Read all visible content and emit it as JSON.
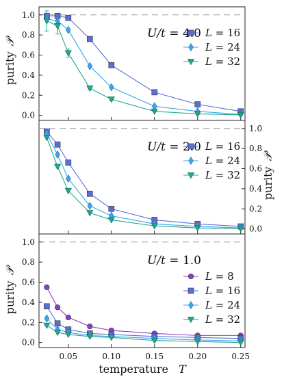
{
  "figure": {
    "xlabel_text": "temperature",
    "xlabel_var": "T",
    "ylabel_text": "purity",
    "ylabel_var": "𝒫"
  },
  "colors": {
    "L8": "#8b3fc0",
    "L16": "#5a6ed8",
    "L24": "#3aa6ec",
    "L32": "#23a48e",
    "dashed": "#9a9a9a"
  },
  "chart_data": [
    {
      "type": "line",
      "panel": "top",
      "annotation_lhs": "U/t",
      "annotation_rhs": "= 4.0",
      "xlim": [
        0.016,
        0.255
      ],
      "ylim": [
        -0.05,
        1.08
      ],
      "y_ticks": [
        0.0,
        0.2,
        0.4,
        0.6,
        0.8,
        1.0
      ],
      "y_tick_labels": [
        "0.0",
        "0.2",
        "0.4",
        "0.6",
        "0.8",
        "1.0"
      ],
      "y_axis_side": "left",
      "show_x_ticks": false,
      "grid": false,
      "legend": "right",
      "reference_line_y": 1.0,
      "series": [
        {
          "name": "L = 16",
          "key": "L16",
          "marker": "square",
          "x": [
            0.025,
            0.0375,
            0.05,
            0.075,
            0.1,
            0.15,
            0.2,
            0.25
          ],
          "y": [
            0.99,
            0.99,
            0.97,
            0.76,
            0.5,
            0.23,
            0.11,
            0.04
          ]
        },
        {
          "name": "L = 24",
          "key": "L24",
          "marker": "diamond",
          "x": [
            0.025,
            0.0375,
            0.05,
            0.075,
            0.1,
            0.15,
            0.2,
            0.25
          ],
          "y": [
            0.96,
            0.94,
            0.85,
            0.49,
            0.28,
            0.09,
            0.04,
            0.01
          ]
        },
        {
          "name": "L = 32",
          "key": "L32",
          "marker": "triangle-down",
          "x": [
            0.025,
            0.0375,
            0.05,
            0.075,
            0.1,
            0.15,
            0.2,
            0.25
          ],
          "y": [
            0.94,
            0.89,
            0.62,
            0.27,
            0.16,
            0.04,
            0.015,
            0.005
          ],
          "err": [
            0.1,
            0.08,
            0.04,
            0.015,
            0.01,
            0.005,
            0.005,
            0.005
          ]
        }
      ]
    },
    {
      "type": "line",
      "panel": "middle",
      "annotation_lhs": "U/t",
      "annotation_rhs": "= 2.0",
      "xlim": [
        0.016,
        0.255
      ],
      "ylim": [
        -0.05,
        1.08
      ],
      "y_ticks": [
        0.0,
        0.2,
        0.4,
        0.6,
        0.8,
        1.0
      ],
      "y_tick_labels": [
        "0.0",
        "0.2",
        "0.4",
        "0.6",
        "0.8",
        "1.0"
      ],
      "y_axis_side": "right",
      "show_x_ticks": false,
      "grid": false,
      "legend": "right",
      "reference_line_y": 1.0,
      "series": [
        {
          "name": "L = 16",
          "key": "L16",
          "marker": "square",
          "x": [
            0.025,
            0.0375,
            0.05,
            0.075,
            0.1,
            0.15,
            0.2,
            0.25
          ],
          "y": [
            0.97,
            0.84,
            0.66,
            0.35,
            0.2,
            0.09,
            0.05,
            0.025
          ]
        },
        {
          "name": "L = 24",
          "key": "L24",
          "marker": "diamond",
          "x": [
            0.025,
            0.0375,
            0.05,
            0.075,
            0.1,
            0.15,
            0.2,
            0.25
          ],
          "y": [
            0.95,
            0.74,
            0.5,
            0.23,
            0.13,
            0.05,
            0.025,
            0.01
          ]
        },
        {
          "name": "L = 32",
          "key": "L32",
          "marker": "triangle-down",
          "x": [
            0.025,
            0.0375,
            0.05,
            0.075,
            0.1,
            0.15,
            0.2,
            0.25
          ],
          "y": [
            0.91,
            0.62,
            0.38,
            0.16,
            0.09,
            0.03,
            0.01,
            0.005
          ]
        }
      ]
    },
    {
      "type": "line",
      "panel": "bottom",
      "annotation_lhs": "U/t",
      "annotation_rhs": "= 1.0",
      "xlim": [
        0.016,
        0.255
      ],
      "ylim": [
        -0.05,
        1.08
      ],
      "x_ticks": [
        0.05,
        0.1,
        0.15,
        0.2,
        0.25
      ],
      "x_tick_labels": [
        "0.05",
        "0.10",
        "0.15",
        "0.20",
        "0.25"
      ],
      "y_ticks": [
        0.0,
        0.2,
        0.4,
        0.6,
        0.8,
        1.0
      ],
      "y_tick_labels": [
        "0.0",
        "0.2",
        "0.4",
        "0.6",
        "0.8",
        "1.0"
      ],
      "y_axis_side": "left",
      "show_x_ticks": true,
      "grid": false,
      "legend": "right",
      "reference_line_y": 1.0,
      "series": [
        {
          "name": "L = 8",
          "key": "L8",
          "marker": "circle",
          "x": [
            0.025,
            0.0375,
            0.05,
            0.075,
            0.1,
            0.15,
            0.2,
            0.25
          ],
          "y": [
            0.55,
            0.35,
            0.25,
            0.16,
            0.12,
            0.09,
            0.07,
            0.07
          ]
        },
        {
          "name": "L = 16",
          "key": "L16",
          "marker": "square",
          "x": [
            0.025,
            0.0375,
            0.05,
            0.075,
            0.1,
            0.15,
            0.2,
            0.25
          ],
          "y": [
            0.36,
            0.19,
            0.13,
            0.09,
            0.08,
            0.06,
            0.05,
            0.04
          ]
        },
        {
          "name": "L = 24",
          "key": "L24",
          "marker": "diamond",
          "x": [
            0.025,
            0.0375,
            0.05,
            0.075,
            0.1,
            0.15,
            0.2,
            0.25
          ],
          "y": [
            0.24,
            0.13,
            0.1,
            0.07,
            0.06,
            0.04,
            0.025,
            0.015
          ]
        },
        {
          "name": "L = 32",
          "key": "L32",
          "marker": "triangle-down",
          "x": [
            0.025,
            0.0375,
            0.05,
            0.075,
            0.1,
            0.15,
            0.2,
            0.25
          ],
          "y": [
            0.17,
            0.1,
            0.08,
            0.06,
            0.05,
            0.02,
            0.01,
            0.0
          ]
        }
      ]
    }
  ]
}
